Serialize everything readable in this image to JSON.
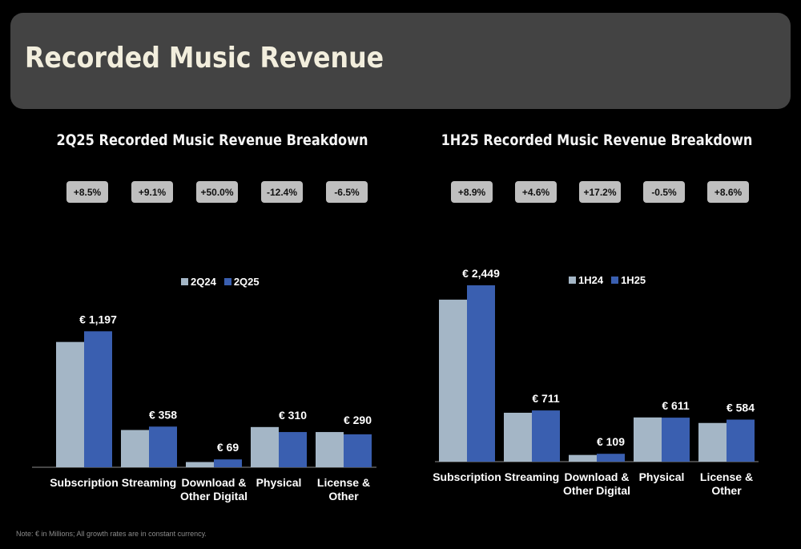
{
  "header": {
    "title": "Recorded Music Revenue"
  },
  "colors": {
    "prior": "#a4b6c6",
    "current": "#3a5fb0",
    "header_bg": "#434343",
    "pill_bg": "#bfbfbf"
  },
  "footnote": "Note: € in Millions; All growth rates are in constant currency.",
  "chart_data": [
    {
      "type": "bar",
      "title": "2Q25 Recorded Music Revenue Breakdown",
      "categories": [
        "Subscription",
        "Streaming",
        "Download & Other Digital",
        "Physical",
        "License & Other"
      ],
      "category_lines": [
        [
          "Subscription"
        ],
        [
          "Streaming"
        ],
        [
          "Download &",
          "Other Digital"
        ],
        [
          "Physical"
        ],
        [
          "License &",
          "Other"
        ]
      ],
      "series": [
        {
          "name": "2Q24",
          "values": [
            1103,
            328,
            46,
            354,
            310
          ]
        },
        {
          "name": "2Q25",
          "values": [
            1197,
            358,
            69,
            310,
            290
          ]
        }
      ],
      "data_labels": [
        "€ 1,197",
        "€ 358",
        "€ 69",
        "€ 310",
        "€ 290"
      ],
      "growth": [
        "+8.5%",
        "+9.1%",
        "+50.0%",
        "-12.4%",
        "-6.5%"
      ],
      "ylim": [
        0,
        1270
      ],
      "legend": "top-center"
    },
    {
      "type": "bar",
      "title": "1H25 Recorded Music Revenue Breakdown",
      "categories": [
        "Subscription",
        "Streaming",
        "Download & Other Digital",
        "Physical",
        "License & Other"
      ],
      "category_lines": [
        [
          "Subscription"
        ],
        [
          "Streaming"
        ],
        [
          "Download &",
          "Other Digital"
        ],
        [
          "Physical"
        ],
        [
          "License &",
          "Other"
        ]
      ],
      "series": [
        {
          "name": "1H24",
          "values": [
            2250,
            679,
            93,
            614,
            537
          ]
        },
        {
          "name": "1H25",
          "values": [
            2449,
            711,
            109,
            611,
            584
          ]
        }
      ],
      "data_labels": [
        "€ 2,449",
        "€ 711",
        "€ 109",
        "€ 611",
        "€ 584"
      ],
      "growth": [
        "+8.9%",
        "+4.6%",
        "+17.2%",
        "-0.5%",
        "+8.6%"
      ],
      "ylim": [
        0,
        2560
      ],
      "legend": "top-center"
    }
  ]
}
